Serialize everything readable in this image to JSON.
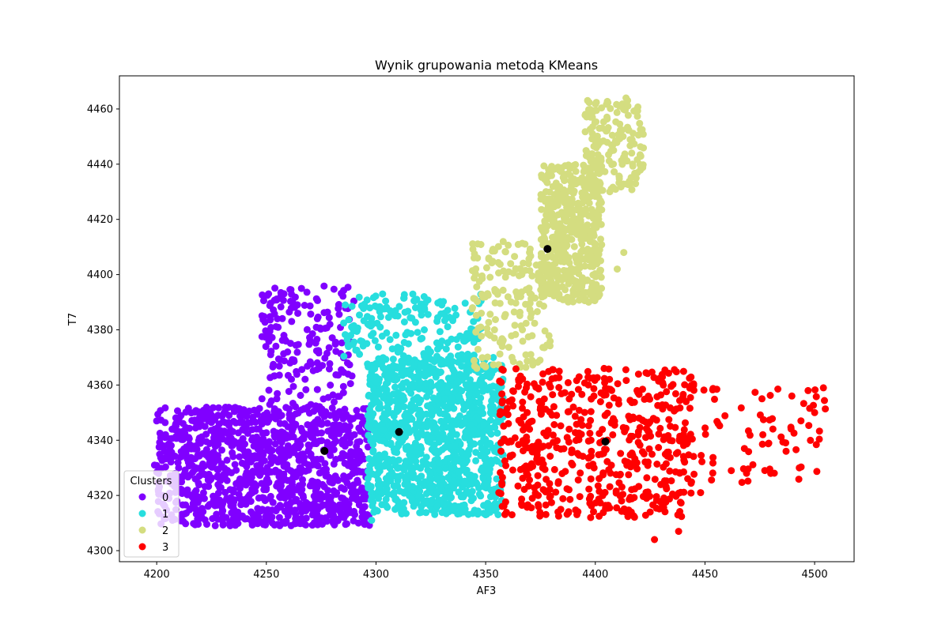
{
  "chart_data": {
    "type": "scatter",
    "title": "Wynik grupowania metodą KMeans",
    "xlabel": "AF3",
    "ylabel": "T7",
    "xlim": [
      4183,
      4518
    ],
    "ylim": [
      4296,
      4472
    ],
    "xticks": [
      4200,
      4250,
      4300,
      4350,
      4400,
      4450,
      4500
    ],
    "yticks": [
      4300,
      4320,
      4340,
      4360,
      4380,
      4400,
      4420,
      4440,
      4460
    ],
    "grid": false,
    "legend": {
      "title": "Clusters",
      "placement": "lower-left"
    },
    "series": [
      {
        "name": "0",
        "color": "#8000ff",
        "regions": [
          {
            "x_min": 4200,
            "x_max": 4297,
            "y_min": 4309,
            "y_max": 4352,
            "density": "very high"
          },
          {
            "x_min": 4248,
            "x_max": 4290,
            "y_min": 4352,
            "y_max": 4396,
            "density": "medium"
          }
        ],
        "sample_points": [
          [
            4199,
            4331
          ],
          [
            4200,
            4347
          ],
          [
            4203,
            4338
          ],
          [
            4207,
            4344
          ],
          [
            4210,
            4330
          ],
          [
            4214,
            4322
          ],
          [
            4218,
            4338
          ],
          [
            4222,
            4345
          ],
          [
            4228,
            4333
          ],
          [
            4233,
            4349
          ],
          [
            4238,
            4326
          ],
          [
            4244,
            4313
          ],
          [
            4248,
            4355
          ],
          [
            4252,
            4371
          ],
          [
            4255,
            4384
          ],
          [
            4258,
            4378
          ],
          [
            4262,
            4390
          ],
          [
            4266,
            4395
          ],
          [
            4270,
            4376
          ],
          [
            4274,
            4366
          ],
          [
            4279,
            4382
          ],
          [
            4283,
            4389
          ],
          [
            4287,
            4368
          ],
          [
            4292,
            4310
          ],
          [
            4296,
            4348
          ],
          [
            4256,
            4312
          ],
          [
            4263,
            4318
          ],
          [
            4281,
            4315
          ],
          [
            4290,
            4330
          ],
          [
            4294,
            4322
          ]
        ]
      },
      {
        "name": "1",
        "color": "#27dede",
        "regions": [
          {
            "x_min": 4296,
            "x_max": 4358,
            "y_min": 4313,
            "y_max": 4370,
            "density": "very high"
          },
          {
            "x_min": 4285,
            "x_max": 4348,
            "y_min": 4370,
            "y_max": 4393,
            "density": "medium"
          }
        ],
        "sample_points": [
          [
            4286,
            4389
          ],
          [
            4293,
            4376
          ],
          [
            4298,
            4311
          ],
          [
            4303,
            4393
          ],
          [
            4310,
            4385
          ],
          [
            4318,
            4388
          ],
          [
            4322,
            4380
          ],
          [
            4330,
            4389
          ],
          [
            4335,
            4384
          ],
          [
            4340,
            4376
          ],
          [
            4344,
            4368
          ],
          [
            4348,
            4366
          ],
          [
            4355,
            4326
          ],
          [
            4357,
            4352
          ],
          [
            4350,
            4313
          ],
          [
            4340,
            4314
          ],
          [
            4328,
            4316
          ],
          [
            4312,
            4314
          ]
        ]
      },
      {
        "name": "2",
        "color": "#d4dd80",
        "regions": [
          {
            "x_min": 4343,
            "x_max": 4380,
            "y_min": 4366,
            "y_max": 4413,
            "density": "medium"
          },
          {
            "x_min": 4375,
            "x_max": 4403,
            "y_min": 4390,
            "y_max": 4440,
            "density": "high"
          },
          {
            "x_min": 4395,
            "x_max": 4422,
            "y_min": 4430,
            "y_max": 4464,
            "density": "medium"
          }
        ],
        "sample_points": [
          [
            4344,
            4388
          ],
          [
            4348,
            4386
          ],
          [
            4352,
            4378
          ],
          [
            4355,
            4394
          ],
          [
            4358,
            4412
          ],
          [
            4362,
            4370
          ],
          [
            4366,
            4392
          ],
          [
            4370,
            4408
          ],
          [
            4374,
            4398
          ],
          [
            4378,
            4411
          ],
          [
            4382,
            4418
          ],
          [
            4386,
            4426
          ],
          [
            4390,
            4393
          ],
          [
            4395,
            4432
          ],
          [
            4398,
            4441
          ],
          [
            4402,
            4409
          ],
          [
            4405,
            4452
          ],
          [
            4408,
            4447
          ],
          [
            4411,
            4461
          ],
          [
            4414,
            4464
          ],
          [
            4419,
            4460
          ],
          [
            4417,
            4440
          ],
          [
            4410,
            4402
          ],
          [
            4413,
            4408
          ]
        ]
      },
      {
        "name": "3",
        "color": "#ff0000",
        "regions": [
          {
            "x_min": 4356,
            "x_max": 4445,
            "y_min": 4312,
            "y_max": 4366,
            "density": "high"
          },
          {
            "x_min": 4440,
            "x_max": 4505,
            "y_min": 4323,
            "y_max": 4359,
            "density": "low"
          }
        ],
        "sample_points": [
          [
            4356,
            4321
          ],
          [
            4357,
            4336
          ],
          [
            4358,
            4350
          ],
          [
            4362,
            4313
          ],
          [
            4365,
            4362
          ],
          [
            4370,
            4344
          ],
          [
            4376,
            4330
          ],
          [
            4383,
            4314
          ],
          [
            4390,
            4352
          ],
          [
            4398,
            4326
          ],
          [
            4404,
            4366
          ],
          [
            4412,
            4318
          ],
          [
            4420,
            4348
          ],
          [
            4425,
            4314
          ],
          [
            4427,
            4304
          ],
          [
            4431,
            4360
          ],
          [
            4438,
            4307
          ],
          [
            4442,
            4339
          ],
          [
            4448,
            4321
          ],
          [
            4456,
            4346
          ],
          [
            4462,
            4329
          ],
          [
            4468,
            4337
          ],
          [
            4476,
            4355
          ],
          [
            4480,
            4328
          ],
          [
            4487,
            4336
          ],
          [
            4493,
            4330
          ],
          [
            4500,
            4350
          ],
          [
            4504,
            4359
          ],
          [
            4497,
            4358
          ]
        ]
      }
    ],
    "centroids": {
      "color": "#000000",
      "points": [
        [
          4276.5,
          4336.1
        ],
        [
          4310.5,
          4343.0
        ],
        [
          4378.2,
          4409.3
        ],
        [
          4404.6,
          4339.5
        ]
      ]
    }
  }
}
